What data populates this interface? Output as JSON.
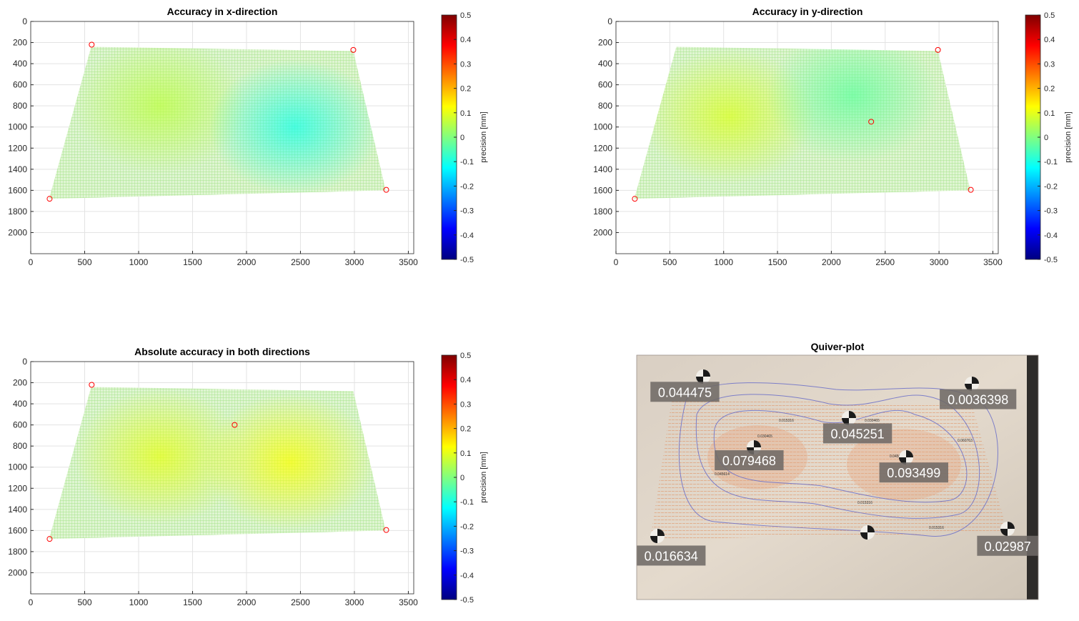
{
  "figure": {
    "colorbar_label": "precision [mm]",
    "colorbar_ticks": [
      "0.5",
      "0.4",
      "0.3",
      "0.2",
      "0.1",
      "0",
      "-0.1",
      "-0.2",
      "-0.3",
      "-0.4",
      "-0.5"
    ],
    "colorbar_stops": [
      "#000080",
      "#0000ff",
      "#0080ff",
      "#00ffff",
      "#80ff80",
      "#ffff00",
      "#ff8000",
      "#ff0000",
      "#800000"
    ],
    "mesh_color": "#a6e48a",
    "marker_color": "#ff0000"
  },
  "chart_data": [
    {
      "type": "heatmap",
      "title": "Accuracy in x-direction",
      "xlabel": "",
      "ylabel": "",
      "xlim": [
        0,
        3550
      ],
      "ylim": [
        2200,
        0
      ],
      "y_reversed": true,
      "xticks": [
        "0",
        "500",
        "1000",
        "1500",
        "2000",
        "2500",
        "3000",
        "3500"
      ],
      "yticks": [
        "0",
        "200",
        "400",
        "600",
        "800",
        "1000",
        "1200",
        "1400",
        "1600",
        "1800",
        "2000"
      ],
      "grid": true,
      "colorbar_range": [
        -0.5,
        0.5
      ],
      "region_corners": [
        [
          560,
          240
        ],
        [
          2990,
          280
        ],
        [
          3290,
          1600
        ],
        [
          170,
          1680
        ]
      ],
      "field_hotspots": [
        {
          "x": 1200,
          "y": 800,
          "value": 0.06
        },
        {
          "x": 2450,
          "y": 1000,
          "value": -0.1
        }
      ],
      "markers": [
        [
          565,
          220
        ],
        [
          2990,
          270
        ],
        [
          3295,
          1595
        ],
        [
          175,
          1680
        ]
      ]
    },
    {
      "type": "heatmap",
      "title": "Accuracy in y-direction",
      "xlabel": "",
      "ylabel": "",
      "xlim": [
        0,
        3550
      ],
      "ylim": [
        2200,
        0
      ],
      "y_reversed": true,
      "xticks": [
        "0",
        "500",
        "1000",
        "1500",
        "2000",
        "2500",
        "3000",
        "3500"
      ],
      "yticks": [
        "0",
        "200",
        "400",
        "600",
        "800",
        "1000",
        "1200",
        "1400",
        "1600",
        "1800",
        "2000"
      ],
      "grid": true,
      "colorbar_range": [
        -0.5,
        0.5
      ],
      "region_corners": [
        [
          560,
          240
        ],
        [
          2990,
          280
        ],
        [
          3290,
          1600
        ],
        [
          170,
          1680
        ]
      ],
      "field_hotspots": [
        {
          "x": 1050,
          "y": 900,
          "value": 0.09
        },
        {
          "x": 2200,
          "y": 700,
          "value": -0.03
        }
      ],
      "markers": [
        [
          2990,
          270
        ],
        [
          3295,
          1595
        ],
        [
          175,
          1680
        ],
        [
          2370,
          950
        ]
      ]
    },
    {
      "type": "heatmap",
      "title": "Absolute accuracy in both directions",
      "xlabel": "",
      "ylabel": "",
      "xlim": [
        0,
        3550
      ],
      "ylim": [
        2200,
        0
      ],
      "y_reversed": true,
      "xticks": [
        "0",
        "500",
        "1000",
        "1500",
        "2000",
        "2500",
        "3000",
        "3500"
      ],
      "yticks": [
        "0",
        "200",
        "400",
        "600",
        "800",
        "1000",
        "1200",
        "1400",
        "1600",
        "1800",
        "2000"
      ],
      "grid": true,
      "colorbar_range": [
        -0.5,
        0.5
      ],
      "region_corners": [
        [
          560,
          240
        ],
        [
          2990,
          280
        ],
        [
          3290,
          1600
        ],
        [
          170,
          1680
        ]
      ],
      "field_hotspots": [
        {
          "x": 1200,
          "y": 900,
          "value": 0.1
        },
        {
          "x": 2400,
          "y": 950,
          "value": 0.12
        }
      ],
      "markers": [
        [
          565,
          220
        ],
        [
          1890,
          600
        ],
        [
          3295,
          1595
        ],
        [
          175,
          1680
        ]
      ]
    },
    {
      "type": "scatter",
      "title": "Quiver-plot",
      "labels": [
        {
          "text": "0.044475",
          "x": 0.12,
          "y": 0.15
        },
        {
          "text": "0.0036398",
          "x": 0.85,
          "y": 0.18
        },
        {
          "text": "0.045251",
          "x": 0.55,
          "y": 0.32
        },
        {
          "text": "0.079468",
          "x": 0.28,
          "y": 0.43
        },
        {
          "text": "0.093499",
          "x": 0.69,
          "y": 0.48
        },
        {
          "text": "0.016634",
          "x": 0.08,
          "y": 0.82
        },
        {
          "text": "0.02987",
          "x": 0.97,
          "y": 0.78
        }
      ],
      "contour_labels": [
        "0.015316",
        "0.030465",
        "0.045614",
        "0.060763"
      ]
    }
  ]
}
